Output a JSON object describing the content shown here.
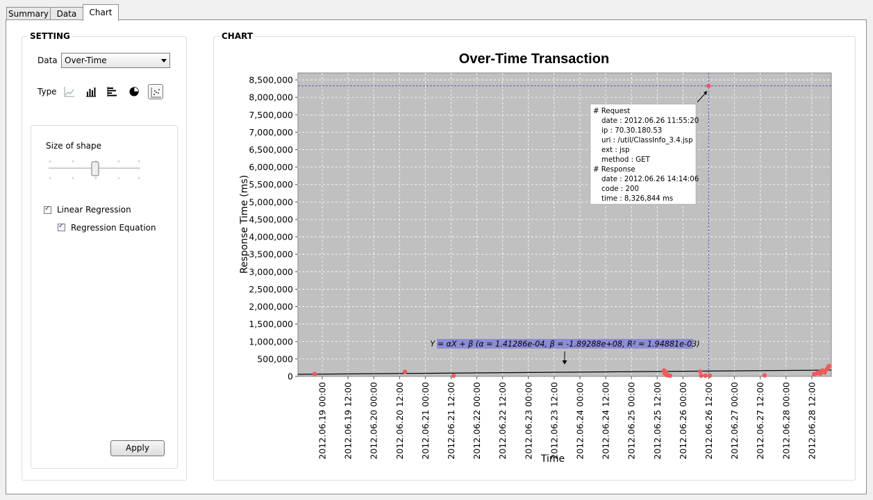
{
  "tabs": [
    {
      "label": "Summary",
      "active": false
    },
    {
      "label": "Data",
      "active": false
    },
    {
      "label": "Chart",
      "active": true
    }
  ],
  "setting": {
    "title": "SETTING",
    "data_label": "Data",
    "data_value": "Over-Time",
    "type_label": "Type",
    "type_icons": [
      "line-chart-icon",
      "bar-chart-icon",
      "horizontal-bar-chart-icon",
      "pie-chart-icon",
      "scatter-chart-icon"
    ],
    "selected_type": "scatter-chart-icon",
    "size_label": "Size of shape",
    "size_value": 0.5,
    "linear_regression_label": "Linear Regression",
    "linear_regression_checked": true,
    "regression_equation_label": "Regression Equation",
    "regression_equation_checked": true,
    "apply_label": "Apply"
  },
  "chart_panel": {
    "title": "CHART"
  },
  "chart_data": {
    "type": "scatter",
    "title": "Over-Time Transaction",
    "xlabel": "Time",
    "ylabel": "Response Time (ms)",
    "ylim": [
      0,
      8700000
    ],
    "y_ticks": [
      "0",
      "500,000",
      "1,000,000",
      "1,500,000",
      "2,000,000",
      "2,500,000",
      "3,000,000",
      "3,500,000",
      "4,000,000",
      "4,500,000",
      "5,000,000",
      "5,500,000",
      "6,000,000",
      "6,500,000",
      "7,000,000",
      "7,500,000",
      "8,000,000",
      "8,500,000"
    ],
    "x_ticks": [
      "2012.06.19 00:00",
      "2012.06.19 12:00",
      "2012.06.20 00:00",
      "2012.06.20 12:00",
      "2012.06.21 00:00",
      "2012.06.21 12:00",
      "2012.06.22 00:00",
      "2012.06.22 12:00",
      "2012.06.23 00:00",
      "2012.06.23 12:00",
      "2012.06.24 00:00",
      "2012.06.24 12:00",
      "2012.06.25 00:00",
      "2012.06.25 12:00",
      "2012.06.26 00:00",
      "2012.06.26 12:00",
      "2012.06.27 00:00",
      "2012.06.27 12:00",
      "2012.06.28 00:00",
      "2012.06.28 12:00"
    ],
    "grid": true,
    "background": "#c0c0c0",
    "point_color": "#f05a5a",
    "points": [
      {
        "x": "2012.06.18 20:30",
        "y": 70000
      },
      {
        "x": "2012.06.20 14:30",
        "y": 130000
      },
      {
        "x": "2012.06.21 13:10",
        "y": 20000
      },
      {
        "x": "2012.06.25 15:10",
        "y": 170000
      },
      {
        "x": "2012.06.25 15:30",
        "y": 90000
      },
      {
        "x": "2012.06.25 16:00",
        "y": 120000
      },
      {
        "x": "2012.06.25 16:20",
        "y": 40000
      },
      {
        "x": "2012.06.25 17:00",
        "y": 30000
      },
      {
        "x": "2012.06.25 18:00",
        "y": 20000
      },
      {
        "x": "2012.06.26 08:00",
        "y": 140000
      },
      {
        "x": "2012.06.26 08:30",
        "y": 20000
      },
      {
        "x": "2012.06.26 10:30",
        "y": 20000
      },
      {
        "x": "2012.06.26 11:55",
        "y": 8326844
      },
      {
        "x": "2012.06.26 12:30",
        "y": 20000
      },
      {
        "x": "2012.06.27 14:00",
        "y": 30000
      },
      {
        "x": "2012.06.28 13:00",
        "y": 60000
      },
      {
        "x": "2012.06.28 14:30",
        "y": 90000
      },
      {
        "x": "2012.06.28 15:30",
        "y": 120000
      },
      {
        "x": "2012.06.28 16:00",
        "y": 80000
      },
      {
        "x": "2012.06.28 17:00",
        "y": 170000
      },
      {
        "x": "2012.06.28 18:00",
        "y": 110000
      },
      {
        "x": "2012.06.28 19:00",
        "y": 200000
      },
      {
        "x": "2012.06.28 19:30",
        "y": 250000
      },
      {
        "x": "2012.06.28 20:00",
        "y": 300000
      }
    ],
    "regression": {
      "equation": "Y = αX + β  (α = 1.41286e-04, β = -1.89288e+08, R² = 1.94881e-03)",
      "line": [
        {
          "x": "2012.06.18 20:00",
          "y": 60000
        },
        {
          "x": "2012.06.28 20:00",
          "y": 180000
        }
      ]
    },
    "crosshair": {
      "x": "2012.06.26 11:55",
      "y": 8326844
    },
    "tooltip": [
      "# Request",
      "date : 2012.06.26 11:55:20",
      "ip : 70.30.180.53",
      "uri : /util/ClassInfo_3.4.jsp",
      "ext : jsp",
      "method : GET",
      "# Response",
      "date : 2012.06.26 14:14:06",
      "code : 200",
      "time : 8,326,844 ms"
    ]
  }
}
